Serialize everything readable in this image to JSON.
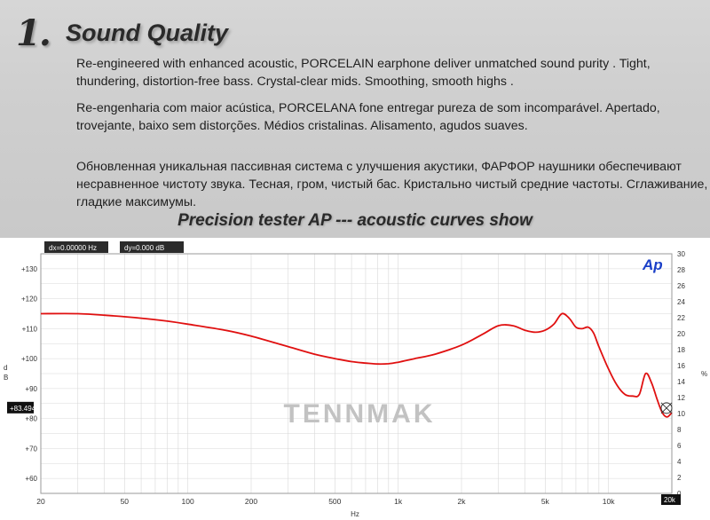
{
  "header": {
    "section_number": "1.",
    "section_title": "Sound Quality",
    "paragraphs": {
      "en": "Re-engineered with enhanced acoustic, PORCELAIN earphone deliver unmatched sound purity . Tight, thundering, distortion-free bass. Crystal-clear mids. Smoothing, smooth highs .",
      "pt": "Re-engenharia com maior acústica, PORCELANA fone entregar pureza de som incomparável. Apertado, trovejante, baixo sem distorções. Médios cristalinas. Alisamento, agudos suaves.",
      "ru": "Обновленная уникальная пассивная система с улучшения акустики, ФАРФОР наушники обеспечивают несравненное чистоту звука. Тесная, гром, чистый бас. Кристально чистый средние частоты. Сглаживание, гладкие максимумы."
    },
    "subtitle": "Precision tester AP --- acoustic curves show"
  },
  "chart_data": {
    "type": "line",
    "title": "",
    "xlabel": "Hz",
    "ylabel": "d B",
    "y2label": "%",
    "x_scale": "log",
    "xlim": [
      20,
      20000
    ],
    "ylim": [
      55,
      135
    ],
    "y2lim": [
      0,
      30
    ],
    "x_ticks": [
      {
        "value": 20,
        "label": "20"
      },
      {
        "value": 50,
        "label": "50"
      },
      {
        "value": 100,
        "label": "100"
      },
      {
        "value": 200,
        "label": "200"
      },
      {
        "value": 500,
        "label": "500"
      },
      {
        "value": 1000,
        "label": "1k"
      },
      {
        "value": 2000,
        "label": "2k"
      },
      {
        "value": 5000,
        "label": "5k"
      },
      {
        "value": 10000,
        "label": "10k"
      },
      {
        "value": 20000,
        "label": "20k"
      }
    ],
    "y_ticks": [
      {
        "value": 60,
        "label": "+60"
      },
      {
        "value": 70,
        "label": "+70"
      },
      {
        "value": 80,
        "label": "+80"
      },
      {
        "value": 90,
        "label": "+90"
      },
      {
        "value": 100,
        "label": "+100"
      },
      {
        "value": 110,
        "label": "+110"
      },
      {
        "value": 120,
        "label": "+120"
      },
      {
        "value": 130,
        "label": "+130"
      }
    ],
    "y2_ticks": [
      0,
      2,
      4,
      6,
      8,
      10,
      12,
      14,
      16,
      18,
      20,
      22,
      24,
      26,
      28,
      30
    ],
    "grid": true,
    "series": [
      {
        "color": "#e01010",
        "x": [
          20,
          30,
          40,
          60,
          80,
          100,
          150,
          200,
          300,
          400,
          500,
          600,
          700,
          800,
          900,
          1000,
          1200,
          1500,
          2000,
          2500,
          3000,
          3500,
          4000,
          4500,
          5000,
          5500,
          6000,
          6500,
          7000,
          7500,
          8000,
          8500,
          9000,
          10000,
          11000,
          12000,
          13000,
          14000,
          15000,
          16000,
          17000,
          18000,
          19000,
          20000
        ],
        "y": [
          115,
          115,
          114.5,
          113.5,
          112.5,
          111.5,
          109.5,
          107.5,
          104,
          101.5,
          100,
          99,
          98.5,
          98.2,
          98.3,
          98.8,
          100,
          101.5,
          104.5,
          108,
          111,
          111,
          109.5,
          108.8,
          109.5,
          111.5,
          115,
          113.5,
          110.5,
          110,
          110.5,
          108.5,
          104,
          96.5,
          91,
          88,
          87.5,
          88,
          95,
          92,
          86.5,
          82,
          80.5,
          82
        ]
      }
    ],
    "readouts": {
      "dx": "dx=0.00000 Hz",
      "dy": "dy=0.000 dB",
      "cursor_y": "+83.494",
      "cursor_x": "20k"
    },
    "brand": "Ap",
    "watermark": "TENNMAK"
  }
}
